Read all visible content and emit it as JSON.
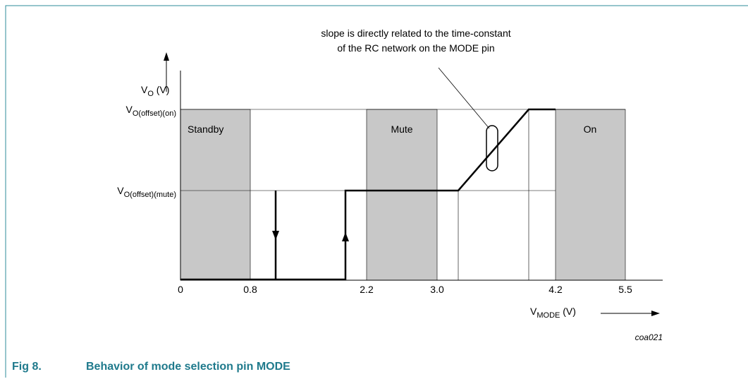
{
  "figure": {
    "caption": {
      "number": "Fig 8.",
      "text": "Behavior of mode selection pin MODE"
    },
    "annotation": [
      "slope is directly related to the time-constant",
      "of the RC network on the MODE pin"
    ],
    "y_axis_label": {
      "main": "V",
      "sub": "O",
      "unit": " (V)"
    },
    "x_axis_label": {
      "main": "V",
      "sub": "MODE",
      "unit": " (V)"
    },
    "levels": [
      {
        "main": "V",
        "sub": "O(offset)(on)"
      },
      {
        "main": "V",
        "sub": "O(offset)(mute)"
      }
    ],
    "regions": [
      "Standby",
      "Mute",
      "On"
    ],
    "x_ticks": [
      "0",
      "0.8",
      "2.2",
      "3.0",
      "4.2",
      "5.5"
    ],
    "code": "coa021"
  }
}
